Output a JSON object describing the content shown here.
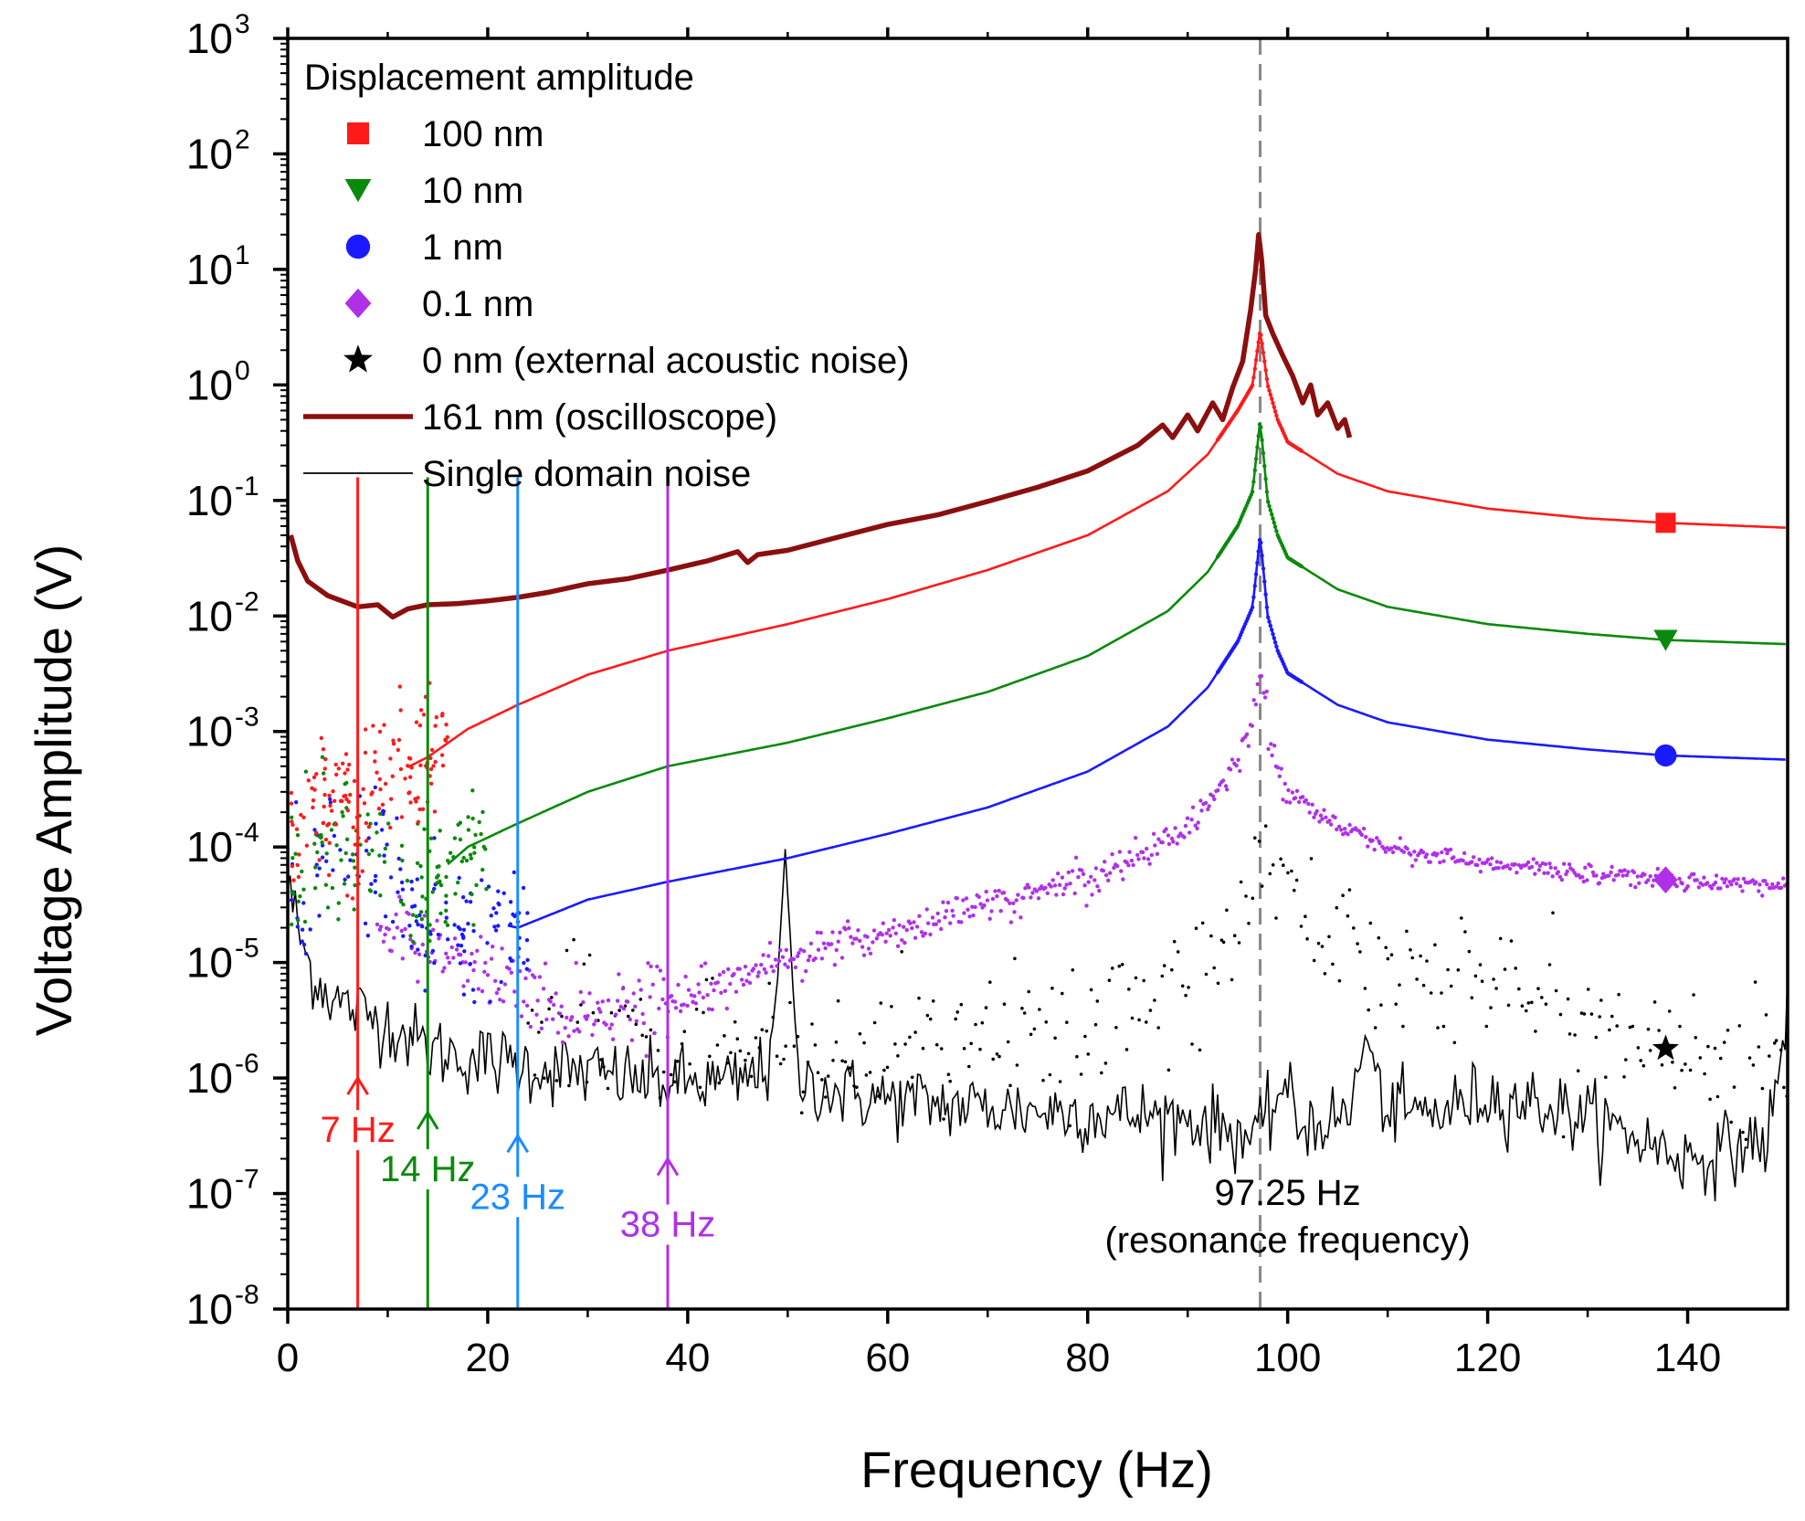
{
  "chart_data": {
    "type": "line",
    "title": "",
    "xlabel": "Frequency (Hz)",
    "ylabel": "Voltage Amplitude (V)",
    "xlim": [
      0,
      150
    ],
    "ylim_log10": [
      -8,
      3
    ],
    "x_ticks": [
      0,
      20,
      40,
      60,
      80,
      100,
      120,
      140
    ],
    "x_tick_labels": [
      "0",
      "20",
      "40",
      "60",
      "80",
      "100",
      "120",
      "140"
    ],
    "y_tick_exponents": [
      3,
      2,
      1,
      0,
      -1,
      -2,
      -3,
      -4,
      -5,
      -6,
      -7,
      -8
    ],
    "y_tick_base": "10",
    "y_tick_exponent_labels": [
      "3",
      "2",
      "1",
      "0",
      "-1",
      "-2",
      "-3",
      "-4",
      "-5",
      "-6",
      "-7",
      "-8"
    ],
    "resonance_frequency": 97.25,
    "legend": {
      "title": "Displacement amplitude",
      "position": "top-left",
      "entries": [
        {
          "label": "100 nm",
          "marker": "square",
          "color": "#ff1a1a"
        },
        {
          "label": "10 nm",
          "marker": "triangle-down",
          "color": "#0a8a0a"
        },
        {
          "label": "1 nm",
          "marker": "circle",
          "color": "#1a1aff"
        },
        {
          "label": "0.1 nm",
          "marker": "diamond",
          "color": "#b030e8"
        },
        {
          "label": "0 nm (external acoustic noise)",
          "marker": "star",
          "color": "#000000"
        },
        {
          "label": "161 nm (oscilloscope)",
          "marker": "line",
          "color": "#8b0f0f"
        },
        {
          "label": "Single domain noise",
          "marker": "thin-line",
          "color": "#000000"
        }
      ]
    },
    "series": [
      {
        "name": "100 nm",
        "color": "#ff1a1a",
        "style": "dots-to-line",
        "points": [
          [
            2,
            0.00022
          ],
          [
            5,
            0.00025
          ],
          [
            7,
            0.00028
          ],
          [
            10,
            0.0004
          ],
          [
            14,
            0.0006
          ],
          [
            18,
            0.00105
          ],
          [
            23,
            0.0017
          ],
          [
            30,
            0.0031
          ],
          [
            38,
            0.005
          ],
          [
            50,
            0.0085
          ],
          [
            60,
            0.014
          ],
          [
            70,
            0.025
          ],
          [
            80,
            0.05
          ],
          [
            88,
            0.12
          ],
          [
            92,
            0.25
          ],
          [
            95,
            0.6
          ],
          [
            96.5,
            1.0
          ],
          [
            97.25,
            3.0
          ],
          [
            98,
            1.0
          ],
          [
            99,
            0.5
          ],
          [
            100,
            0.32
          ],
          [
            105,
            0.17
          ],
          [
            110,
            0.12
          ],
          [
            120,
            0.085
          ],
          [
            130,
            0.07
          ],
          [
            137.8,
            0.064
          ],
          [
            150,
            0.058
          ]
        ]
      },
      {
        "name": "10 nm",
        "color": "#0a8a0a",
        "style": "dots-to-line",
        "points": [
          [
            2,
            0.0001
          ],
          [
            5,
            0.00013
          ],
          [
            7,
            0.00012
          ],
          [
            10,
            0.0001
          ],
          [
            14,
            5e-05
          ],
          [
            18,
            0.0001
          ],
          [
            23,
            0.00016
          ],
          [
            30,
            0.0003
          ],
          [
            38,
            0.0005
          ],
          [
            50,
            0.0008
          ],
          [
            60,
            0.0013
          ],
          [
            70,
            0.0022
          ],
          [
            80,
            0.0045
          ],
          [
            88,
            0.011
          ],
          [
            92,
            0.024
          ],
          [
            95,
            0.06
          ],
          [
            96.5,
            0.12
          ],
          [
            97.25,
            0.5
          ],
          [
            98,
            0.1
          ],
          [
            99,
            0.05
          ],
          [
            100,
            0.032
          ],
          [
            105,
            0.017
          ],
          [
            110,
            0.012
          ],
          [
            120,
            0.0085
          ],
          [
            130,
            0.007
          ],
          [
            137.8,
            0.0062
          ],
          [
            150,
            0.0057
          ]
        ]
      },
      {
        "name": "1 nm",
        "color": "#1a1aff",
        "style": "dots-to-line",
        "points": [
          [
            2,
            6e-05
          ],
          [
            5,
            8e-05
          ],
          [
            7,
            0.00011
          ],
          [
            10,
            6e-05
          ],
          [
            14,
            2e-05
          ],
          [
            18,
            2.5e-05
          ],
          [
            23,
            2e-05
          ],
          [
            30,
            3.5e-05
          ],
          [
            38,
            5e-05
          ],
          [
            50,
            8e-05
          ],
          [
            60,
            0.00013
          ],
          [
            70,
            0.00022
          ],
          [
            80,
            0.00045
          ],
          [
            88,
            0.0011
          ],
          [
            92,
            0.0024
          ],
          [
            95,
            0.006
          ],
          [
            96.5,
            0.012
          ],
          [
            97.25,
            0.05
          ],
          [
            98,
            0.01
          ],
          [
            99,
            0.005
          ],
          [
            100,
            0.0032
          ],
          [
            105,
            0.0017
          ],
          [
            110,
            0.0012
          ],
          [
            120,
            0.00085
          ],
          [
            130,
            0.0007
          ],
          [
            137.8,
            0.00062
          ],
          [
            150,
            0.00057
          ]
        ]
      },
      {
        "name": "0.1 nm",
        "color": "#b030e8",
        "style": "dots",
        "points": [
          [
            10,
            2e-05
          ],
          [
            14,
            1.2e-05
          ],
          [
            18,
            1e-05
          ],
          [
            23,
            6e-06
          ],
          [
            28,
            3.5e-06
          ],
          [
            33,
            4e-06
          ],
          [
            38,
            5e-06
          ],
          [
            45,
            8e-06
          ],
          [
            55,
            1.4e-05
          ],
          [
            65,
            2.4e-05
          ],
          [
            75,
            4e-05
          ],
          [
            85,
            8e-05
          ],
          [
            90,
            0.00015
          ],
          [
            94,
            0.0004
          ],
          [
            96.5,
            0.0012
          ],
          [
            97.25,
            0.004
          ],
          [
            98,
            0.001
          ],
          [
            99,
            0.0005
          ],
          [
            100,
            0.0003
          ],
          [
            105,
            0.00015
          ],
          [
            110,
            0.0001
          ],
          [
            120,
            7e-05
          ],
          [
            130,
            6e-05
          ],
          [
            137.8,
            5.2e-05
          ],
          [
            150,
            4.6e-05
          ]
        ]
      },
      {
        "name": "0 nm (external acoustic noise)",
        "color": "#000000",
        "style": "dots",
        "points": [
          [
            25,
            3e-06
          ],
          [
            35,
            2.5e-06
          ],
          [
            45,
            2.2e-06
          ],
          [
            55,
            1.8e-06
          ],
          [
            65,
            1.8e-06
          ],
          [
            75,
            2.2e-06
          ],
          [
            85,
            4e-06
          ],
          [
            92,
            1e-05
          ],
          [
            97.25,
            0.0001
          ],
          [
            100,
            3e-05
          ],
          [
            110,
            1e-05
          ],
          [
            120,
            7e-06
          ],
          [
            130,
            3.5e-06
          ],
          [
            137.8,
            1.8e-06
          ],
          [
            145,
            1.2e-06
          ],
          [
            150,
            1.5e-06
          ]
        ]
      },
      {
        "name": "161 nm (oscilloscope)",
        "color": "#8b0f0f",
        "style": "thick-line",
        "points": [
          [
            0.3,
            0.05
          ],
          [
            1,
            0.03
          ],
          [
            2,
            0.02
          ],
          [
            4,
            0.015
          ],
          [
            7,
            0.012
          ],
          [
            9,
            0.0125
          ],
          [
            10.5,
            0.0098
          ],
          [
            12,
            0.0115
          ],
          [
            14,
            0.0125
          ],
          [
            17,
            0.0128
          ],
          [
            20,
            0.0135
          ],
          [
            23,
            0.0145
          ],
          [
            26,
            0.016
          ],
          [
            30,
            0.019
          ],
          [
            34,
            0.021
          ],
          [
            38,
            0.025
          ],
          [
            42,
            0.03
          ],
          [
            45,
            0.036
          ],
          [
            46,
            0.029
          ],
          [
            47,
            0.034
          ],
          [
            50,
            0.037
          ],
          [
            55,
            0.048
          ],
          [
            60,
            0.062
          ],
          [
            65,
            0.075
          ],
          [
            70,
            0.098
          ],
          [
            75,
            0.13
          ],
          [
            80,
            0.18
          ],
          [
            85,
            0.3
          ],
          [
            87.5,
            0.45
          ],
          [
            88.5,
            0.35
          ],
          [
            90,
            0.55
          ],
          [
            91,
            0.4
          ],
          [
            92.5,
            0.7
          ],
          [
            93.5,
            0.5
          ],
          [
            94.5,
            0.95
          ],
          [
            95.5,
            1.6
          ],
          [
            96.3,
            4.5
          ],
          [
            96.8,
            10
          ],
          [
            97.1,
            20
          ],
          [
            97.4,
            12
          ],
          [
            97.8,
            4
          ],
          [
            98.5,
            2.8
          ],
          [
            99.5,
            1.8
          ],
          [
            100.5,
            1.2
          ],
          [
            101.5,
            0.7
          ],
          [
            102.3,
            1.0
          ],
          [
            103,
            0.55
          ],
          [
            104,
            0.7
          ],
          [
            105,
            0.42
          ],
          [
            105.7,
            0.5
          ],
          [
            106.2,
            0.35
          ]
        ]
      },
      {
        "name": "Single domain noise",
        "color": "#000000",
        "style": "thin-line",
        "points": [
          [
            0,
            5e-05
          ],
          [
            1,
            2e-05
          ],
          [
            2,
            1e-05
          ],
          [
            3,
            7e-06
          ],
          [
            5,
            4.5e-06
          ],
          [
            7,
            3.8e-06
          ],
          [
            10,
            3e-06
          ],
          [
            14,
            1.8e-06
          ],
          [
            18,
            1.5e-06
          ],
          [
            23,
            1.3e-06
          ],
          [
            30,
            1.1e-06
          ],
          [
            38,
            9e-07
          ],
          [
            45,
            9e-07
          ],
          [
            48,
            1.2e-06
          ],
          [
            49.3,
            1.5e-05
          ],
          [
            49.7,
            0.0001
          ],
          [
            50.2,
            2e-05
          ],
          [
            51,
            1e-06
          ],
          [
            55,
            7.5e-07
          ],
          [
            60,
            6.5e-07
          ],
          [
            70,
            5.5e-07
          ],
          [
            80,
            5e-07
          ],
          [
            90,
            4.5e-07
          ],
          [
            97.25,
            3e-07
          ],
          [
            99.5,
            9e-07
          ],
          [
            101,
            4e-07
          ],
          [
            106,
            4.5e-07
          ],
          [
            107.8,
            2.2e-06
          ],
          [
            108.5,
            1.5e-06
          ],
          [
            110,
            5e-07
          ],
          [
            115,
            5e-07
          ],
          [
            120,
            7e-07
          ],
          [
            125,
            6e-07
          ],
          [
            130,
            4.5e-07
          ],
          [
            135,
            3e-07
          ],
          [
            140,
            2e-07
          ],
          [
            145,
            2.5e-07
          ],
          [
            148,
            3e-07
          ],
          [
            149.5,
            1.5e-06
          ],
          [
            150,
            6e-06
          ]
        ]
      }
    ],
    "annotations": [
      {
        "label": "7 Hz",
        "x": 7,
        "color": "#ff1a1a",
        "arrow_to_exponent": -6.0
      },
      {
        "label": "14 Hz",
        "x": 14,
        "color": "#0a8a0a",
        "arrow_to_exponent": -6.3
      },
      {
        "label": "23 Hz",
        "x": 23,
        "color": "#1a8cff",
        "arrow_to_exponent": -6.5
      },
      {
        "label": "38 Hz",
        "x": 38,
        "color": "#b030e8",
        "arrow_to_exponent": -6.7
      }
    ],
    "resonance_label": [
      "97.25 Hz",
      "(resonance frequency)"
    ]
  }
}
